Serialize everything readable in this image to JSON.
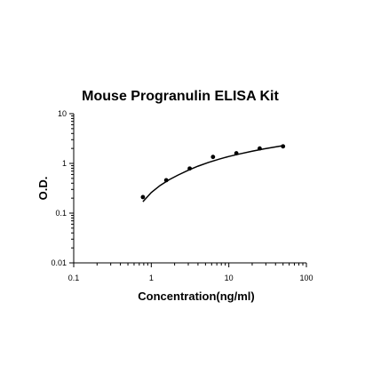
{
  "chart_data": {
    "type": "scatter",
    "title": "Mouse Progranulin  ELISA Kit",
    "xlabel": "Concentration(ng/ml)",
    "ylabel": "O.D.",
    "x_scale": "log",
    "y_scale": "log",
    "xlim": [
      0.1,
      100
    ],
    "ylim": [
      0.01,
      10
    ],
    "x_ticks": [
      "0.1",
      "1",
      "10",
      "100"
    ],
    "y_ticks": [
      "0.01",
      "0.1",
      "1",
      "10"
    ],
    "grid": false,
    "legend": "none",
    "series": [
      {
        "marker": "circle",
        "x": [
          0.78,
          1.56,
          3.13,
          6.25,
          12.5,
          25,
          50
        ],
        "y": [
          0.21,
          0.46,
          0.79,
          1.35,
          1.6,
          2.0,
          2.2
        ]
      }
    ],
    "fit_curve": {
      "type": "line",
      "x": [
        0.78,
        1.0,
        1.3,
        1.7,
        2.2,
        3.0,
        4.0,
        5.5,
        7.5,
        10,
        14,
        20,
        28,
        38,
        50
      ],
      "y": [
        0.17,
        0.26,
        0.36,
        0.47,
        0.58,
        0.73,
        0.88,
        1.05,
        1.22,
        1.38,
        1.56,
        1.76,
        1.95,
        2.12,
        2.28
      ]
    },
    "colors": {
      "points": "#000000",
      "curve": "#000000",
      "axes": "#000000"
    }
  }
}
